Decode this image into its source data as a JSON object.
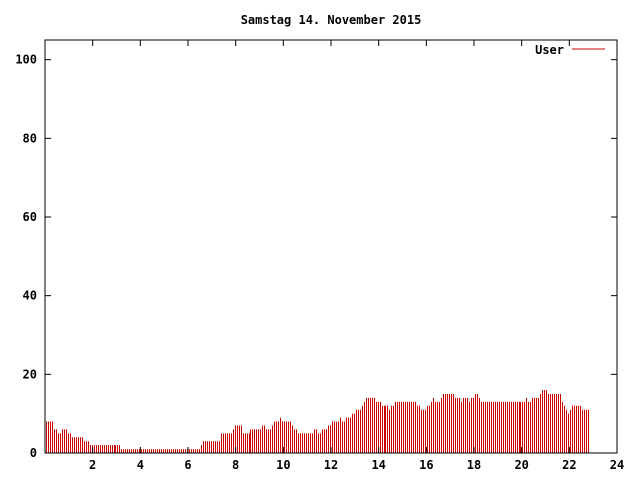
{
  "chart_data": {
    "type": "bar",
    "title": "Samstag 14. November 2015",
    "xlabel": "",
    "ylabel": "",
    "xlim": [
      0,
      24
    ],
    "ylim": [
      0,
      105
    ],
    "x_ticks": [
      2,
      4,
      6,
      8,
      10,
      12,
      14,
      16,
      18,
      20,
      22,
      24
    ],
    "y_ticks": [
      0,
      20,
      40,
      60,
      80,
      100
    ],
    "grid": false,
    "legend_position": "top-right",
    "bar_step_hours": 0.0833,
    "series": [
      {
        "name": "User",
        "color": "#cc0000",
        "values": [
          8,
          8,
          8,
          8,
          6,
          6,
          5,
          5,
          6,
          6,
          6,
          5,
          5,
          4,
          4,
          4,
          4,
          4,
          4,
          3,
          3,
          3,
          2,
          2,
          2,
          2,
          2,
          2,
          2,
          2,
          2,
          2,
          2,
          2,
          2,
          2,
          2,
          2,
          1,
          1,
          1,
          1,
          1,
          1,
          1,
          1,
          1,
          1,
          1,
          1,
          1,
          1,
          1,
          1,
          1,
          1,
          1,
          1,
          1,
          1,
          1,
          1,
          1,
          1,
          1,
          1,
          1,
          1,
          1,
          1,
          1,
          1,
          1,
          1,
          1,
          1,
          1,
          1,
          2,
          3,
          3,
          3,
          3,
          3,
          3,
          3,
          3,
          3,
          5,
          5,
          5,
          5,
          5,
          5,
          6,
          7,
          7,
          7,
          7,
          5,
          5,
          5,
          5,
          6,
          6,
          6,
          6,
          6,
          6,
          7,
          7,
          6,
          6,
          6,
          7,
          8,
          8,
          8,
          9,
          8,
          8,
          8,
          8,
          8,
          7,
          6,
          6,
          5,
          5,
          5,
          5,
          5,
          5,
          5,
          5,
          6,
          6,
          5,
          5,
          6,
          6,
          6,
          7,
          7,
          8,
          8,
          8,
          8,
          9,
          8,
          8,
          9,
          9,
          9,
          10,
          10,
          11,
          11,
          11,
          12,
          13,
          14,
          14,
          14,
          14,
          14,
          13,
          13,
          13,
          12,
          12,
          12,
          12,
          11,
          12,
          12,
          13,
          13,
          13,
          13,
          13,
          13,
          13,
          13,
          13,
          13,
          13,
          12,
          12,
          11,
          11,
          11,
          12,
          12,
          13,
          14,
          13,
          13,
          13,
          14,
          15,
          15,
          15,
          15,
          15,
          15,
          14,
          14,
          14,
          13,
          14,
          14,
          14,
          13,
          14,
          14,
          15,
          15,
          14,
          13,
          13,
          13,
          13,
          13,
          13,
          13,
          13,
          13,
          13,
          13,
          13,
          13,
          13,
          13,
          13,
          13,
          13,
          13,
          13,
          13,
          13,
          13,
          14,
          13,
          13,
          14,
          14,
          14,
          14,
          15,
          16,
          16,
          16,
          15,
          15,
          15,
          15,
          15,
          15,
          15,
          13,
          12,
          11,
          10,
          11,
          12,
          12,
          12,
          12,
          12,
          11,
          11,
          11,
          11
        ]
      }
    ]
  }
}
